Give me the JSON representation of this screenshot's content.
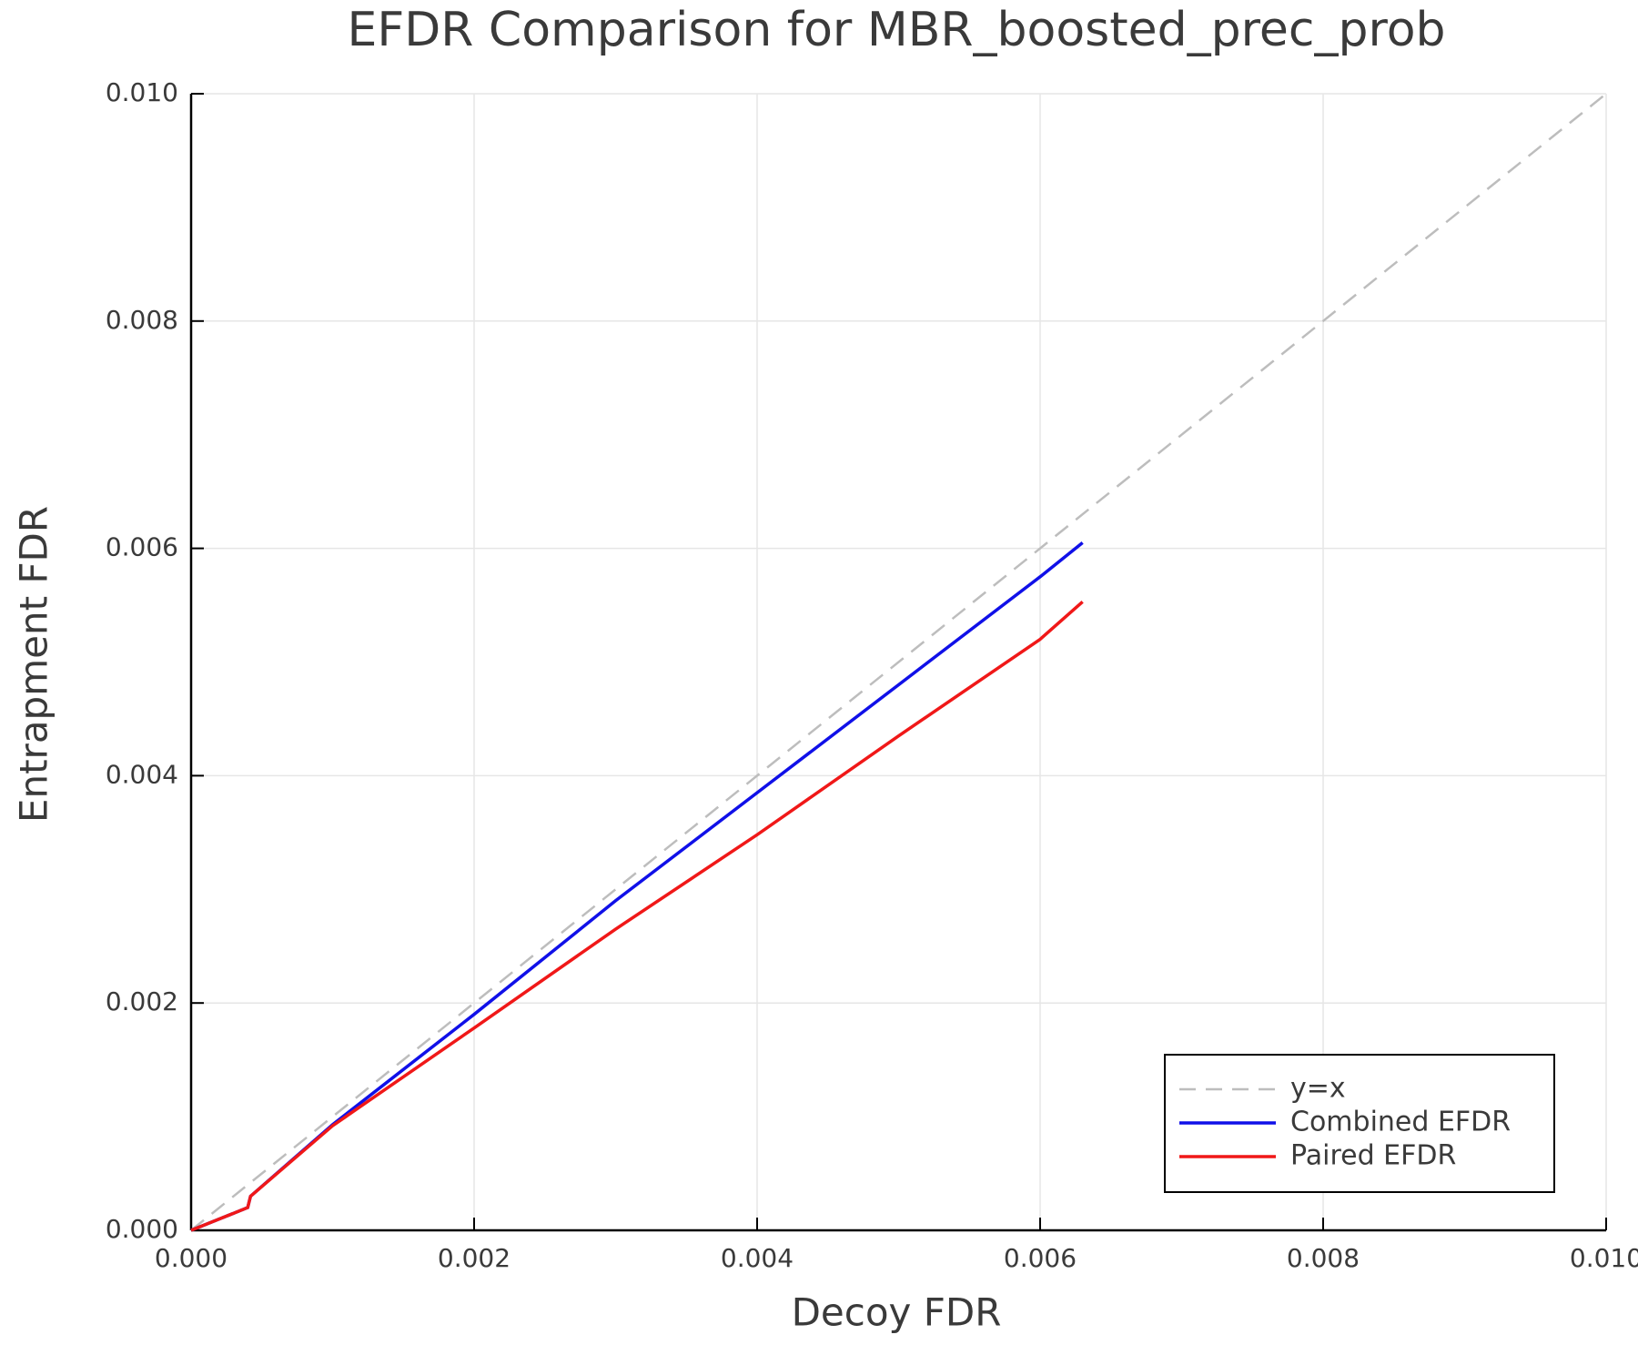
{
  "chart_data": {
    "type": "line",
    "title": "EFDR Comparison for MBR_boosted_prec_prob",
    "x_label": "Decoy FDR",
    "y_label": "Entrapment FDR",
    "xlim": [
      0,
      0.01
    ],
    "ylim": [
      0,
      0.01
    ],
    "xticks": [
      {
        "value": 0,
        "label": "0.000"
      },
      {
        "value": 0.002,
        "label": "0.002"
      },
      {
        "value": 0.004,
        "label": "0.004"
      },
      {
        "value": 0.006,
        "label": "0.006"
      },
      {
        "value": 0.008,
        "label": "0.008"
      },
      {
        "value": 0.01,
        "label": "0.010"
      }
    ],
    "yticks": [
      {
        "value": 0,
        "label": "0.000"
      },
      {
        "value": 0.002,
        "label": "0.002"
      },
      {
        "value": 0.004,
        "label": "0.004"
      },
      {
        "value": 0.006,
        "label": "0.006"
      },
      {
        "value": 0.008,
        "label": "0.008"
      },
      {
        "value": 0.01,
        "label": "0.010"
      }
    ],
    "grid": true,
    "legend": "lower right",
    "series": [
      {
        "name": "y=x",
        "color": "#bdbdbd",
        "linestyle": "dashed",
        "x": [
          0,
          0.01
        ],
        "values": [
          0,
          0.01
        ]
      },
      {
        "name": "Combined EFDR",
        "color": "#1010e8",
        "linestyle": "solid",
        "x": [
          0,
          0.0002,
          0.0004,
          0.00042,
          0.001,
          0.002,
          0.003,
          0.004,
          0.005,
          0.006,
          0.0063
        ],
        "values": [
          0,
          0.0001,
          0.0002,
          0.0003,
          0.00093,
          0.0019,
          0.0029,
          0.00385,
          0.0048,
          0.00575,
          0.00605
        ]
      },
      {
        "name": "Paired EFDR",
        "color": "#f01818",
        "linestyle": "solid",
        "x": [
          0,
          0.0002,
          0.0004,
          0.00042,
          0.001,
          0.002,
          0.003,
          0.004,
          0.005,
          0.006,
          0.0063
        ],
        "values": [
          0,
          0.0001,
          0.0002,
          0.0003,
          0.00092,
          0.00178,
          0.00265,
          0.00348,
          0.00435,
          0.0052,
          0.00553
        ]
      }
    ]
  }
}
